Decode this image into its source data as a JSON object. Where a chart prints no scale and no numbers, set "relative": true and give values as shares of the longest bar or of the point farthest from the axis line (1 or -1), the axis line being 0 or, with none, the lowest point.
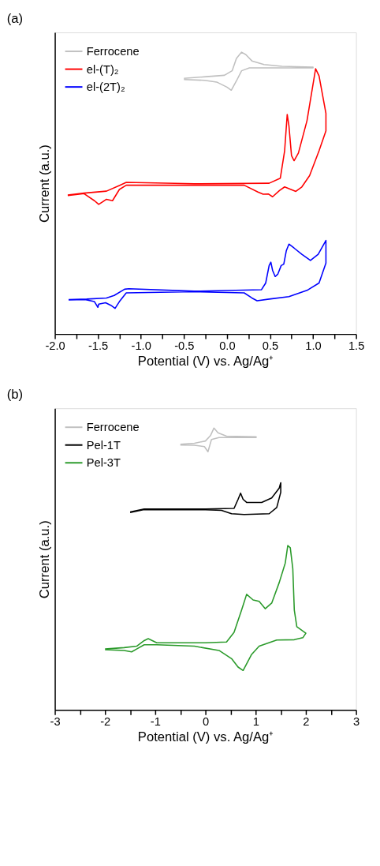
{
  "chart_data": [
    {
      "type": "line",
      "title": "(a)",
      "xlabel": "Potential (V) vs. Ag/Ag⁺",
      "ylabel": "Current (a.u.)",
      "relative": true,
      "legend": "top left",
      "xlim": [
        -2.0,
        1.5
      ],
      "xticks": [
        {
          "value": -2.0,
          "label": "-2.0"
        },
        {
          "value": -1.75,
          "label": null
        },
        {
          "value": -1.5,
          "label": "-1.5"
        },
        {
          "value": -1.25,
          "label": null
        },
        {
          "value": -1.0,
          "label": "-1.0"
        },
        {
          "value": -0.75,
          "label": null
        },
        {
          "value": -0.5,
          "label": "-0.5"
        },
        {
          "value": -0.25,
          "label": null
        },
        {
          "value": 0.0,
          "label": "0.0"
        },
        {
          "value": 0.25,
          "label": null
        },
        {
          "value": 0.5,
          "label": "0.5"
        },
        {
          "value": 0.75,
          "label": null
        },
        {
          "value": 1.0,
          "label": "1.0"
        },
        {
          "value": 1.25,
          "label": null
        },
        {
          "value": 1.5,
          "label": "1.5"
        }
      ],
      "series": [
        {
          "name": "Ferrocene",
          "color": "#c0c0c0",
          "x": [
            -0.5,
            -0.24,
            -0.03,
            0.06,
            0.11,
            0.17,
            0.22,
            0.29,
            0.43,
            0.64,
            1.0,
            1.0,
            0.49,
            0.26,
            0.17,
            0.11,
            0.05,
            0.0,
            -0.12,
            -0.26,
            -0.5
          ],
          "values": [
            0.907,
            0.913,
            0.918,
            0.934,
            0.978,
            1.0,
            0.991,
            0.969,
            0.956,
            0.95,
            0.947,
            0.944,
            0.944,
            0.944,
            0.934,
            0.898,
            0.865,
            0.876,
            0.894,
            0.9,
            0.903
          ]
        },
        {
          "name": "el-(T)₂",
          "color": "#ff0000",
          "x": [
            -1.85,
            -1.66,
            -1.4,
            -1.25,
            -1.17,
            -0.38,
            0.49,
            0.62,
            0.67,
            0.7,
            0.72,
            0.75,
            0.78,
            0.83,
            0.93,
            1.03,
            1.07,
            1.15,
            1.15,
            1.07,
            0.96,
            0.87,
            0.8,
            0.67,
            0.61,
            0.53,
            0.48,
            0.42,
            0.36,
            0.2,
            -0.38,
            -1.17,
            -1.25,
            -1.33,
            -1.4,
            -1.49,
            -1.54,
            -1.66,
            -1.85
          ],
          "values": [
            0.493,
            0.5,
            0.507,
            0.527,
            0.538,
            0.533,
            0.535,
            0.553,
            0.65,
            0.779,
            0.739,
            0.633,
            0.615,
            0.642,
            0.757,
            0.941,
            0.916,
            0.783,
            0.721,
            0.65,
            0.562,
            0.522,
            0.506,
            0.522,
            0.509,
            0.487,
            0.497,
            0.496,
            0.504,
            0.528,
            0.528,
            0.528,
            0.513,
            0.473,
            0.478,
            0.46,
            0.473,
            0.498,
            0.491
          ]
        },
        {
          "name": "el-(2T)₂",
          "color": "#0000ff",
          "x": [
            -1.84,
            -1.63,
            -1.4,
            -1.31,
            -1.19,
            -1.14,
            -0.38,
            0.4,
            0.45,
            0.49,
            0.51,
            0.53,
            0.56,
            0.59,
            0.63,
            0.66,
            0.69,
            0.72,
            0.78,
            0.87,
            0.97,
            1.06,
            1.15,
            1.15,
            1.07,
            0.93,
            0.72,
            0.49,
            0.35,
            0.29,
            0.2,
            -0.38,
            -1.17,
            -1.25,
            -1.3,
            -1.35,
            -1.41,
            -1.49,
            -1.5,
            -1.54,
            -1.65,
            -1.84
          ],
          "values": [
            0.122,
            0.124,
            0.128,
            0.137,
            0.159,
            0.161,
            0.152,
            0.157,
            0.181,
            0.243,
            0.255,
            0.226,
            0.204,
            0.212,
            0.243,
            0.248,
            0.296,
            0.319,
            0.305,
            0.283,
            0.261,
            0.283,
            0.332,
            0.252,
            0.181,
            0.155,
            0.133,
            0.124,
            0.118,
            0.128,
            0.146,
            0.15,
            0.146,
            0.115,
            0.091,
            0.102,
            0.111,
            0.106,
            0.095,
            0.115,
            0.122,
            0.121
          ]
        }
      ]
    },
    {
      "type": "line",
      "title": "(b)",
      "xlabel": "Potential (V) vs. Ag/Ag⁺",
      "ylabel": "Current (a.u.)",
      "relative": true,
      "legend": "top left",
      "xlim": [
        -3,
        3
      ],
      "xticks": [
        -3,
        {
          "value": -2.5,
          "label": null
        },
        -2,
        {
          "value": -1.5,
          "label": null
        },
        -1,
        {
          "value": -0.5,
          "label": null
        },
        0,
        {
          "value": 0.5,
          "label": null
        },
        1,
        {
          "value": 1.5,
          "label": null
        },
        2,
        {
          "value": 2.5,
          "label": null
        },
        3
      ],
      "series": [
        {
          "name": "Ferrocene",
          "color": "#c0c0c0",
          "x": [
            -0.5,
            -0.22,
            0.0,
            0.1,
            0.17,
            0.25,
            0.42,
            1.01,
            1.01,
            0.27,
            0.12,
            0.05,
            -0.02,
            -0.22,
            -0.5
          ],
          "values": [
            0.942,
            0.946,
            0.954,
            0.973,
            1.0,
            0.983,
            0.971,
            0.969,
            0.966,
            0.966,
            0.959,
            0.916,
            0.934,
            0.939,
            0.94
          ]
        },
        {
          "name": "Pel-1T",
          "color": "#000000",
          "x": [
            -1.5,
            -1.22,
            0.0,
            0.57,
            0.65,
            0.7,
            0.75,
            0.82,
            1.12,
            1.32,
            1.47,
            1.5,
            1.5,
            1.42,
            1.27,
            0.77,
            0.52,
            0.32,
            0.0,
            -1.22,
            -1.5
          ],
          "values": [
            0.702,
            0.713,
            0.713,
            0.715,
            0.747,
            0.769,
            0.747,
            0.736,
            0.736,
            0.752,
            0.787,
            0.806,
            0.772,
            0.718,
            0.696,
            0.693,
            0.696,
            0.708,
            0.71,
            0.711,
            0.7
          ]
        },
        {
          "name": "Pel-3T",
          "color": "#2a9a2a",
          "x": [
            -2.0,
            -1.62,
            -1.37,
            -1.22,
            -1.14,
            -0.97,
            0.0,
            0.42,
            0.57,
            0.72,
            0.82,
            0.95,
            1.07,
            1.19,
            1.32,
            1.47,
            1.59,
            1.64,
            1.69,
            1.74,
            1.77,
            1.82,
            2.0,
            1.94,
            1.77,
            1.42,
            1.07,
            0.92,
            0.75,
            0.65,
            0.52,
            0.27,
            -0.22,
            -0.97,
            -1.22,
            -1.37,
            -1.47,
            -1.62,
            -2.0
          ],
          "values": [
            0.216,
            0.221,
            0.226,
            0.246,
            0.253,
            0.238,
            0.238,
            0.241,
            0.275,
            0.354,
            0.41,
            0.39,
            0.385,
            0.359,
            0.379,
            0.452,
            0.521,
            0.583,
            0.575,
            0.501,
            0.354,
            0.295,
            0.272,
            0.256,
            0.249,
            0.248,
            0.226,
            0.197,
            0.14,
            0.152,
            0.182,
            0.211,
            0.226,
            0.231,
            0.231,
            0.216,
            0.206,
            0.211,
            0.214
          ]
        }
      ]
    }
  ]
}
